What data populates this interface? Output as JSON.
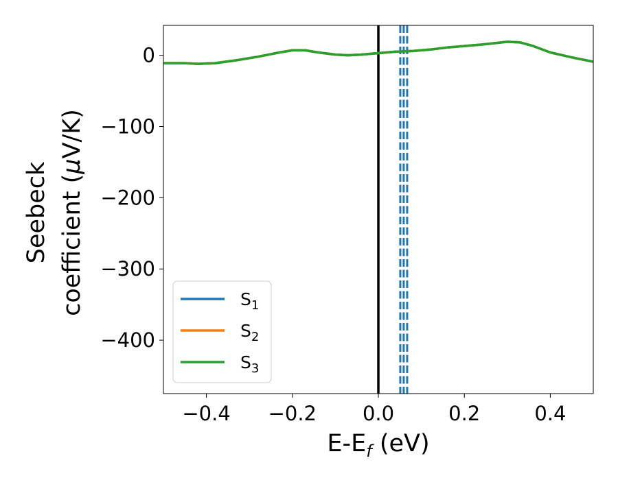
{
  "chart_data": {
    "type": "line",
    "title": "",
    "xlabel": "E-E",
    "xlabel_sub": "f",
    "xlabel_unit": " (eV)",
    "ylabel_line1": "Seebeck",
    "ylabel_line2": "coefficient  (",
    "ylabel_mu": "μ",
    "ylabel_unit_rest": "V/K)",
    "xlim": [
      -0.5,
      0.5
    ],
    "ylim": [
      -475,
      42
    ],
    "x_ticks": [
      -0.4,
      -0.2,
      0.0,
      0.2,
      0.4
    ],
    "x_tick_labels": [
      "−0.4",
      "−0.2",
      "0.0",
      "0.2",
      "0.4"
    ],
    "y_ticks": [
      0,
      -100,
      -200,
      -300,
      -400
    ],
    "y_tick_labels": [
      "0",
      "−100",
      "−200",
      "−300",
      "−400"
    ],
    "grid": false,
    "legend_position": "lower-left",
    "series": [
      {
        "name": "S",
        "sub": "1",
        "color": "#1f77b4",
        "x": [
          -0.5,
          -0.45,
          -0.42,
          -0.38,
          -0.33,
          -0.28,
          -0.23,
          -0.2,
          -0.17,
          -0.14,
          -0.1,
          -0.07,
          -0.04,
          0.0,
          0.04,
          0.08,
          0.12,
          0.16,
          0.2,
          0.24,
          0.27,
          0.3,
          0.33,
          0.36,
          0.4,
          0.45,
          0.5
        ],
        "y": [
          -11,
          -11,
          -12,
          -11,
          -7,
          -2,
          4,
          7,
          7,
          4,
          1,
          0,
          1,
          3,
          5,
          6,
          8,
          11,
          13,
          15,
          17,
          19,
          18,
          13,
          4,
          -3,
          -9
        ]
      },
      {
        "name": "S",
        "sub": "2",
        "color": "#ff7f0e",
        "x": [
          -0.5,
          -0.45,
          -0.42,
          -0.38,
          -0.33,
          -0.28,
          -0.23,
          -0.2,
          -0.17,
          -0.14,
          -0.1,
          -0.07,
          -0.04,
          0.0,
          0.04,
          0.08,
          0.12,
          0.16,
          0.2,
          0.24,
          0.27,
          0.3,
          0.33,
          0.36,
          0.4,
          0.45,
          0.5
        ],
        "y": [
          -11,
          -11,
          -12,
          -11,
          -7,
          -2,
          4,
          7,
          7,
          4,
          1,
          0,
          1,
          3,
          5,
          6,
          8,
          11,
          13,
          15,
          17,
          19,
          18,
          13,
          4,
          -3,
          -9
        ]
      },
      {
        "name": "S",
        "sub": "3",
        "color": "#2ca02c",
        "x": [
          -0.5,
          -0.45,
          -0.42,
          -0.38,
          -0.33,
          -0.28,
          -0.23,
          -0.2,
          -0.17,
          -0.14,
          -0.1,
          -0.07,
          -0.04,
          0.0,
          0.04,
          0.08,
          0.12,
          0.16,
          0.2,
          0.24,
          0.27,
          0.3,
          0.33,
          0.36,
          0.4,
          0.45,
          0.5
        ],
        "y": [
          -11,
          -11,
          -12,
          -11,
          -7,
          -2,
          4,
          7,
          7,
          4,
          1,
          0,
          1,
          3,
          5,
          6,
          8,
          11,
          13,
          15,
          17,
          19,
          18,
          13,
          4,
          -3,
          -9
        ]
      }
    ],
    "vertical_lines": [
      {
        "x": 0.0,
        "color": "#000000",
        "style": "solid"
      },
      {
        "x": 0.051,
        "color": "#1f77b4",
        "style": "dashed"
      },
      {
        "x": 0.059,
        "color": "#1f77b4",
        "style": "dashed"
      },
      {
        "x": 0.067,
        "color": "#1f77b4",
        "style": "dashed"
      }
    ]
  }
}
